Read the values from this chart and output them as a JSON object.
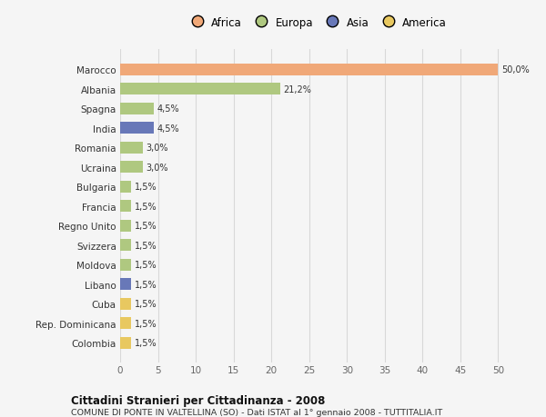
{
  "countries": [
    "Marocco",
    "Albania",
    "Spagna",
    "India",
    "Romania",
    "Ucraina",
    "Bulgaria",
    "Francia",
    "Regno Unito",
    "Svizzera",
    "Moldova",
    "Libano",
    "Cuba",
    "Rep. Dominicana",
    "Colombia"
  ],
  "values": [
    50.0,
    21.2,
    4.5,
    4.5,
    3.0,
    3.0,
    1.5,
    1.5,
    1.5,
    1.5,
    1.5,
    1.5,
    1.5,
    1.5,
    1.5
  ],
  "labels": [
    "50,0%",
    "21,2%",
    "4,5%",
    "4,5%",
    "3,0%",
    "3,0%",
    "1,5%",
    "1,5%",
    "1,5%",
    "1,5%",
    "1,5%",
    "1,5%",
    "1,5%",
    "1,5%",
    "1,5%"
  ],
  "colors": [
    "#f0a878",
    "#afc880",
    "#afc880",
    "#6878b8",
    "#afc880",
    "#afc880",
    "#afc880",
    "#afc880",
    "#afc880",
    "#afc880",
    "#afc880",
    "#6878b8",
    "#e8c860",
    "#e8c860",
    "#e8c860"
  ],
  "legend_labels": [
    "Africa",
    "Europa",
    "Asia",
    "America"
  ],
  "legend_colors": [
    "#f0a878",
    "#afc880",
    "#6878b8",
    "#e8c860"
  ],
  "xlim": [
    0,
    52
  ],
  "xticks": [
    0,
    5,
    10,
    15,
    20,
    25,
    30,
    35,
    40,
    45,
    50
  ],
  "title": "Cittadini Stranieri per Cittadinanza - 2008",
  "subtitle": "COMUNE DI PONTE IN VALTELLINA (SO) - Dati ISTAT al 1° gennaio 2008 - TUTTITALIA.IT",
  "bg_color": "#f5f5f5",
  "grid_color": "#d8d8d8",
  "bar_height": 0.6,
  "label_fontsize": 7.0,
  "ytick_fontsize": 7.5,
  "xtick_fontsize": 7.5
}
